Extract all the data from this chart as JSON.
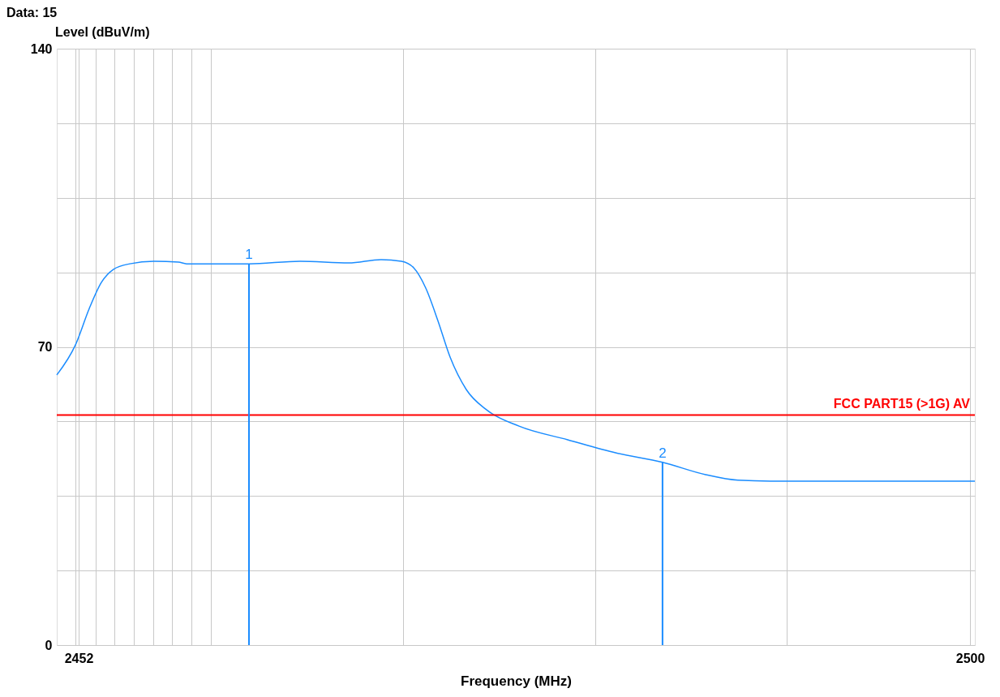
{
  "chart_data": {
    "type": "line",
    "xlabel": "Frequency (MHz)",
    "ylabel": "Level (dBuV/m)",
    "series": [
      {
        "color": "#1a8cff",
        "x": [
          2450.82,
          2451.83,
          2452.57,
          2453.22,
          2453.88,
          2454.75,
          2456.06,
          2457.37,
          2457.81,
          2461.17,
          2463.92,
          2466.54,
          2468.28,
          2469.38,
          2470.03,
          2470.69,
          2471.34,
          2472.0,
          2472.87,
          2473.97,
          2475.71,
          2478.33,
          2480.95,
          2483.44,
          2485.76,
          2487.5,
          2489.25,
          2500.26
        ],
        "values": [
          63.4,
          70.5,
          79,
          85.1,
          88.2,
          89.5,
          90.1,
          89.9,
          89.5,
          89.5,
          90.1,
          89.7,
          90.5,
          90.1,
          88.6,
          83.8,
          76.2,
          67.6,
          60,
          55.2,
          51.4,
          48.2,
          45.1,
          42.9,
          40,
          38.7,
          38.5,
          38.5
        ]
      }
    ],
    "xlim": [
      2450.82,
      2500.26
    ],
    "xticks": [
      {
        "value": 2451.83,
        "label": null
      },
      2452,
      {
        "value": 2452.92,
        "label": null
      },
      {
        "value": 2453.92,
        "label": null
      },
      {
        "value": 2454.97,
        "label": null
      },
      {
        "value": 2456.02,
        "label": null
      },
      {
        "value": 2457.02,
        "label": null
      },
      {
        "value": 2458.07,
        "label": null
      },
      {
        "value": 2459.12,
        "label": null
      },
      {
        "value": 2469.47,
        "label": null
      },
      {
        "value": 2479.82,
        "label": null
      },
      {
        "value": 2490.12,
        "label": null
      },
      2500
    ],
    "ylim": [
      0,
      140
    ],
    "yticks": [
      0,
      {
        "value": 17.5,
        "label": null
      },
      {
        "value": 35,
        "label": null
      },
      {
        "value": 52.5,
        "label": null
      },
      70,
      {
        "value": 87.5,
        "label": null
      },
      {
        "value": 105,
        "label": null
      },
      {
        "value": 122.5,
        "label": null
      },
      140
    ],
    "grid": true,
    "ref_lines": [
      {
        "axis": "y",
        "value": 54,
        "label": "FCC PART15 (>1G) AV",
        "color": "#ff0000"
      }
    ],
    "annotations": [
      "Data: 15",
      {
        "text": "1",
        "x": 2461.17,
        "y": 89.5
      },
      {
        "text": "2",
        "x": 2483.44,
        "y": 42.9
      }
    ]
  }
}
